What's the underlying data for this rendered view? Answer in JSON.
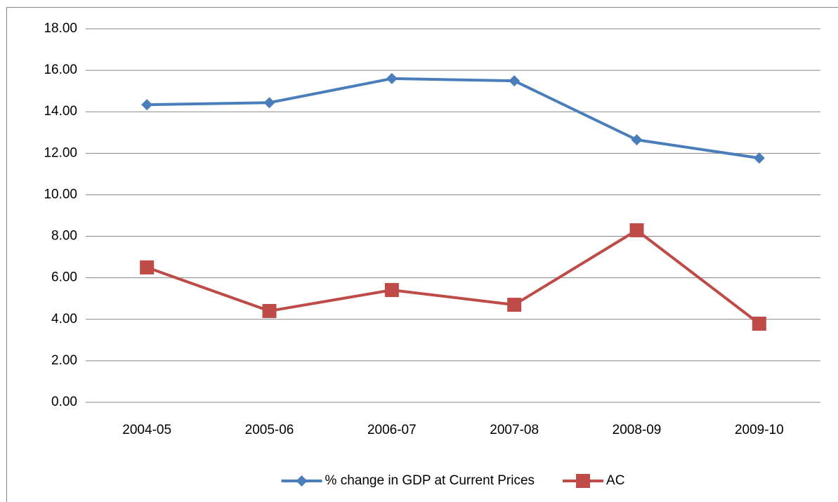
{
  "chart_data": {
    "type": "line",
    "categories": [
      "2004-05",
      "2005-06",
      "2006-07",
      "2007-08",
      "2008-09",
      "2009-10"
    ],
    "series": [
      {
        "name": "% change in GDP at Current Prices",
        "color": "#4a7ebb",
        "marker": "diamond",
        "values": [
          14.34,
          14.44,
          15.6,
          15.49,
          12.65,
          11.77
        ]
      },
      {
        "name": "AC",
        "color": "#be4b48",
        "marker": "square",
        "values": [
          6.5,
          4.4,
          5.41,
          4.7,
          8.29,
          3.79
        ]
      }
    ],
    "ylim": [
      0,
      18
    ],
    "yticks": [
      {
        "value": 0,
        "label": "0.00"
      },
      {
        "value": 2,
        "label": "2.00"
      },
      {
        "value": 4,
        "label": "4.00"
      },
      {
        "value": 6,
        "label": "6.00"
      },
      {
        "value": 8,
        "label": "8.00"
      },
      {
        "value": 10,
        "label": "10.00"
      },
      {
        "value": 12,
        "label": "12.00"
      },
      {
        "value": 14,
        "label": "14.00"
      },
      {
        "value": 16,
        "label": "16.00"
      },
      {
        "value": 18,
        "label": "18.00"
      }
    ],
    "grid": true,
    "legend": "bottom"
  }
}
